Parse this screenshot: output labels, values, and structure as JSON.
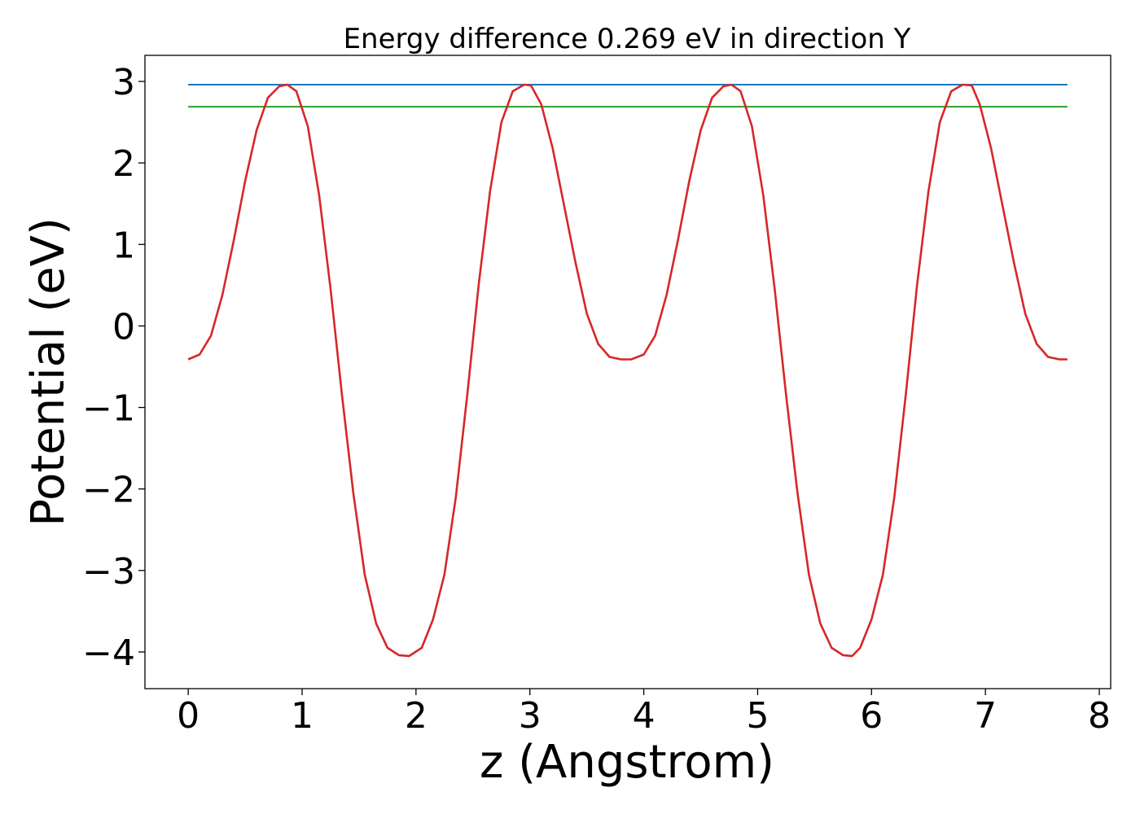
{
  "chart_data": {
    "type": "line",
    "title": "Energy difference 0.269 eV in direction Y",
    "xlabel": "z (Angstrom)",
    "ylabel": "Potential (eV)",
    "xlim": [
      -0.38,
      8.1
    ],
    "ylim": [
      -4.45,
      3.32
    ],
    "grid": false,
    "x_ticks": [
      0,
      1,
      2,
      3,
      4,
      5,
      6,
      7,
      8
    ],
    "x_tick_labels": [
      "0",
      "1",
      "2",
      "3",
      "4",
      "5",
      "6",
      "7",
      "8"
    ],
    "y_ticks": [
      3,
      2,
      1,
      0,
      -1,
      -2,
      -3,
      -4
    ],
    "y_tick_labels": [
      "3",
      "2",
      "1",
      "0",
      "−1",
      "−2",
      "−3",
      "−4"
    ],
    "series": [
      {
        "color": "#1f77b4",
        "x": [
          0.0,
          7.72
        ],
        "y": [
          2.96,
          2.96
        ]
      },
      {
        "color": "#2ca02c",
        "x": [
          0.0,
          7.72
        ],
        "y": [
          2.69,
          2.69
        ]
      },
      {
        "color": "#d62728",
        "x": [
          0.0,
          0.1,
          0.2,
          0.3,
          0.4,
          0.5,
          0.6,
          0.7,
          0.8,
          0.87,
          0.95,
          1.05,
          1.15,
          1.25,
          1.35,
          1.45,
          1.55,
          1.65,
          1.75,
          1.85,
          1.94,
          2.05,
          2.15,
          2.25,
          2.35,
          2.45,
          2.55,
          2.65,
          2.75,
          2.85,
          2.95,
          3.01,
          3.1,
          3.2,
          3.3,
          3.4,
          3.5,
          3.6,
          3.7,
          3.8,
          3.89,
          4.0,
          4.1,
          4.2,
          4.3,
          4.4,
          4.5,
          4.6,
          4.7,
          4.77,
          4.85,
          4.95,
          5.05,
          5.15,
          5.25,
          5.35,
          5.45,
          5.55,
          5.65,
          5.75,
          5.83,
          5.9,
          6.0,
          6.1,
          6.2,
          6.3,
          6.4,
          6.5,
          6.6,
          6.7,
          6.8,
          6.88,
          6.95,
          7.05,
          7.15,
          7.25,
          7.35,
          7.45,
          7.55,
          7.65,
          7.72
        ],
        "y": [
          -0.41,
          -0.35,
          -0.12,
          0.38,
          1.05,
          1.78,
          2.4,
          2.8,
          2.94,
          2.96,
          2.88,
          2.45,
          1.6,
          0.45,
          -0.85,
          -2.05,
          -3.05,
          -3.65,
          -3.95,
          -4.04,
          -4.05,
          -3.95,
          -3.6,
          -3.05,
          -2.1,
          -0.85,
          0.5,
          1.65,
          2.5,
          2.88,
          2.96,
          2.95,
          2.72,
          2.18,
          1.48,
          0.78,
          0.15,
          -0.22,
          -0.38,
          -0.41,
          -0.41,
          -0.35,
          -0.12,
          0.38,
          1.05,
          1.78,
          2.4,
          2.8,
          2.94,
          2.96,
          2.88,
          2.45,
          1.6,
          0.45,
          -0.85,
          -2.05,
          -3.05,
          -3.65,
          -3.95,
          -4.04,
          -4.05,
          -3.95,
          -3.6,
          -3.05,
          -2.1,
          -0.85,
          0.5,
          1.65,
          2.5,
          2.88,
          2.96,
          2.95,
          2.72,
          2.18,
          1.48,
          0.78,
          0.15,
          -0.22,
          -0.38,
          -0.41,
          -0.41
        ]
      }
    ]
  }
}
